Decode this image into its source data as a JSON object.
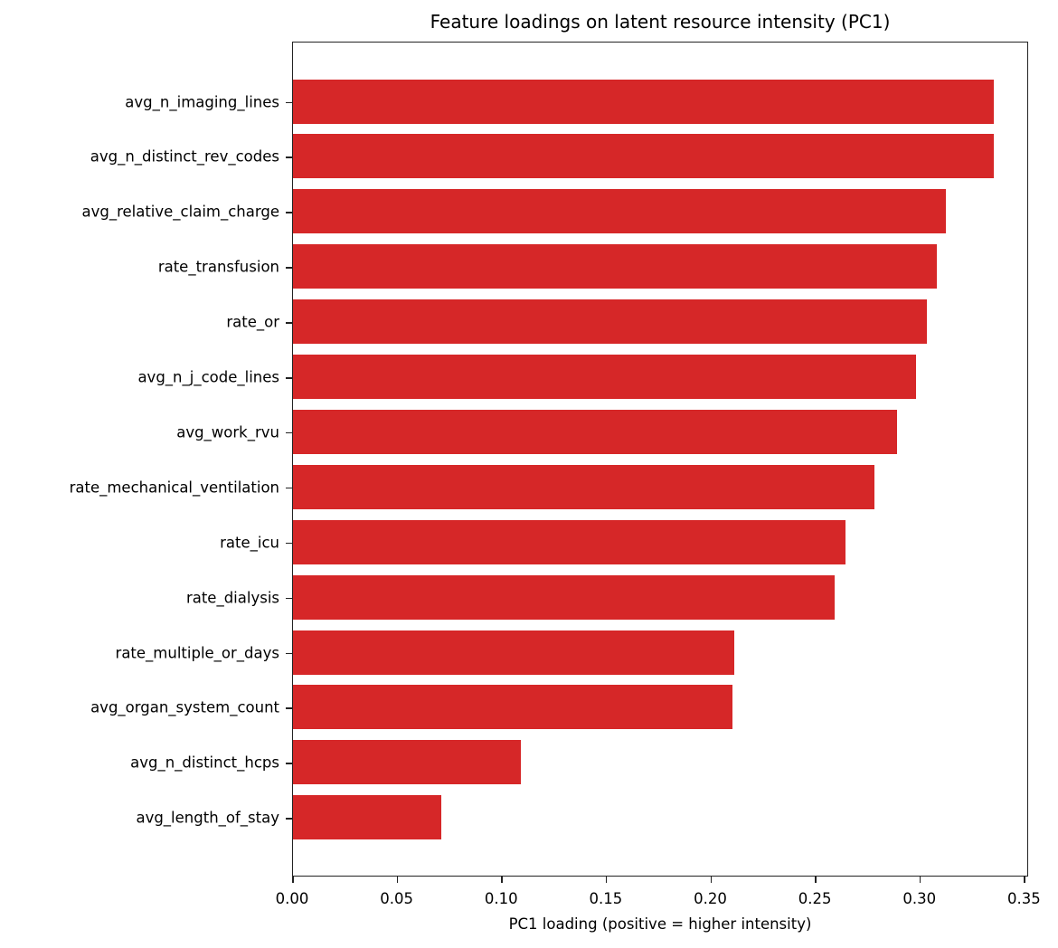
{
  "chart_data": {
    "type": "bar",
    "orientation": "horizontal",
    "title": "Feature loadings on latent resource intensity (PC1)",
    "xlabel": "PC1 loading (positive = higher intensity)",
    "ylabel": "",
    "xlim": [
      0.0,
      0.352
    ],
    "xticks": [
      "0.00",
      "0.05",
      "0.10",
      "0.15",
      "0.20",
      "0.25",
      "0.30",
      "0.35"
    ],
    "grid": false,
    "legend": null,
    "bar_color": "#d62728",
    "categories": [
      "avg_n_imaging_lines",
      "avg_n_distinct_rev_codes",
      "avg_relative_claim_charge",
      "rate_transfusion",
      "rate_or",
      "avg_n_j_code_lines",
      "avg_work_rvu",
      "rate_mechanical_ventilation",
      "rate_icu",
      "rate_dialysis",
      "rate_multiple_or_days",
      "avg_organ_system_count",
      "avg_n_distinct_hcps",
      "avg_length_of_stay"
    ],
    "values": [
      0.335,
      0.335,
      0.312,
      0.308,
      0.303,
      0.298,
      0.289,
      0.278,
      0.264,
      0.259,
      0.211,
      0.21,
      0.109,
      0.071
    ]
  }
}
